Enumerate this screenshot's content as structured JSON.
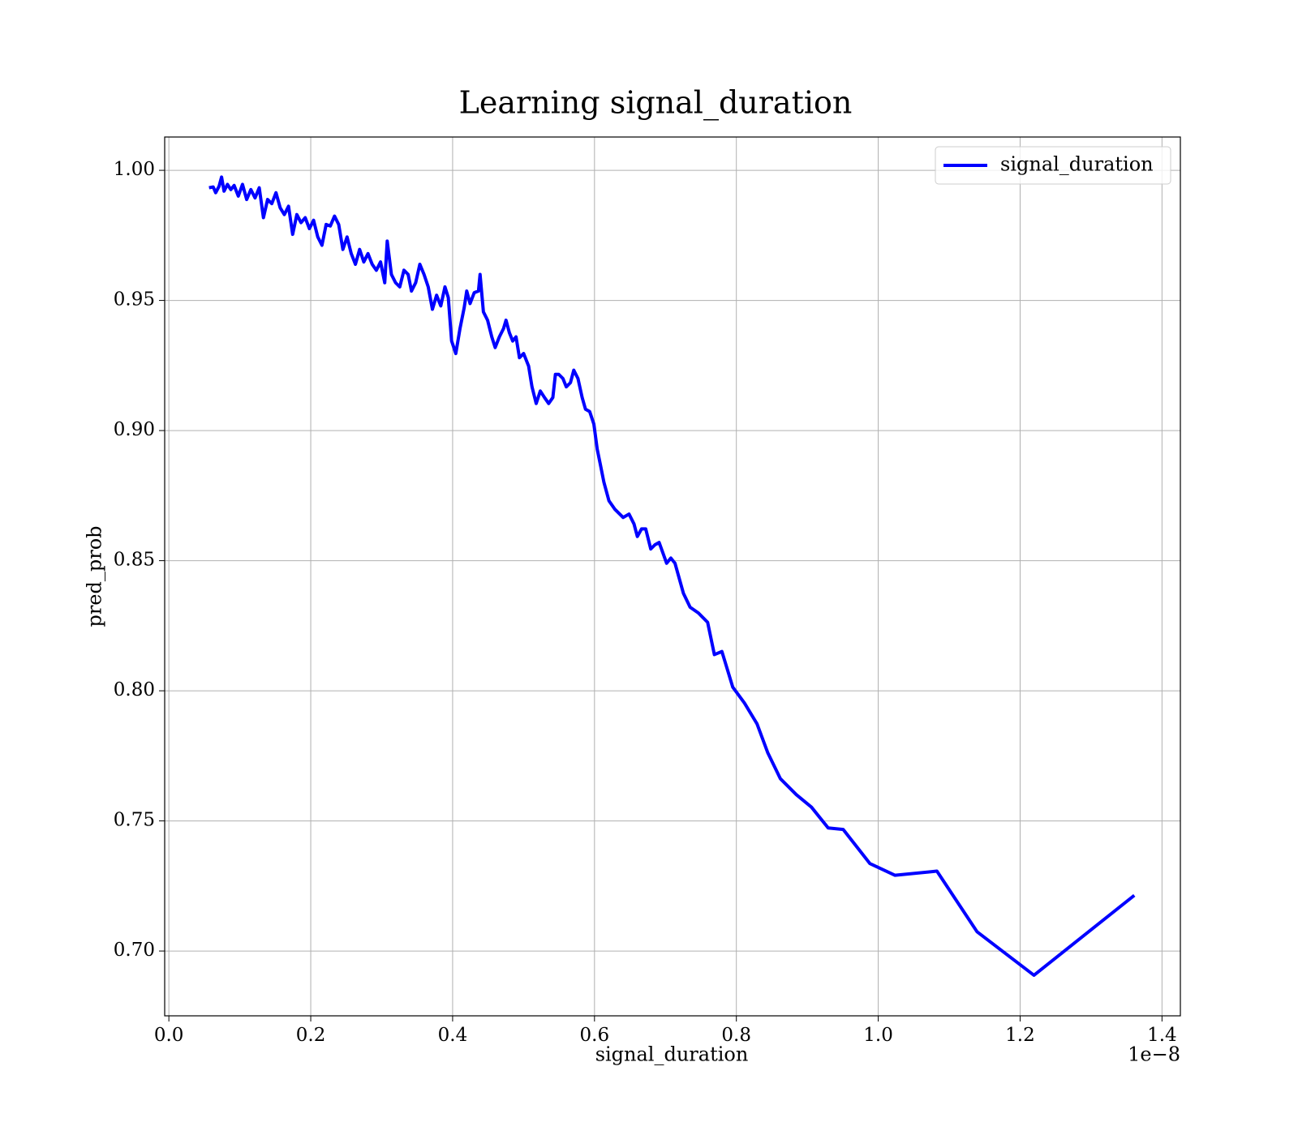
{
  "chart_data": {
    "type": "line",
    "title": "Learning signal_duration",
    "xlabel": "signal_duration",
    "ylabel": "pred_prob",
    "x_offset_label": "1e−8",
    "xlim": [
      -0.0059,
      1.4259
    ],
    "ylim": [
      0.6751,
      1.0128
    ],
    "xticks": [
      {
        "value": 0,
        "label": "0.0"
      },
      0.2,
      0.4,
      0.6,
      0.8,
      {
        "value": 1,
        "label": "1.0"
      },
      1.2,
      1.4
    ],
    "yticks": [
      {
        "value": 0.7,
        "label": "0.70"
      },
      0.75,
      {
        "value": 0.8,
        "label": "0.80"
      },
      0.85,
      {
        "value": 0.9,
        "label": "0.90"
      },
      0.95,
      {
        "value": 1,
        "label": "1.00"
      }
    ],
    "grid": true,
    "legend": "upper right",
    "x": [
      0.0566,
      0.0625,
      0.066,
      0.0708,
      0.0743,
      0.0778,
      0.0826,
      0.0873,
      0.092,
      0.0979,
      0.1038,
      0.1097,
      0.1156,
      0.1215,
      0.1274,
      0.1333,
      0.1392,
      0.1451,
      0.151,
      0.1569,
      0.1628,
      0.1687,
      0.1745,
      0.1804,
      0.1863,
      0.1922,
      0.1981,
      0.204,
      0.2099,
      0.2158,
      0.2217,
      0.2276,
      0.2335,
      0.2394,
      0.2453,
      0.2512,
      0.2571,
      0.263,
      0.2689,
      0.2748,
      0.2807,
      0.2866,
      0.2925,
      0.2984,
      0.3043,
      0.3078,
      0.3137,
      0.3196,
      0.3255,
      0.3314,
      0.3373,
      0.342,
      0.3479,
      0.3538,
      0.3597,
      0.3656,
      0.3715,
      0.3774,
      0.3833,
      0.3892,
      0.3939,
      0.3986,
      0.4045,
      0.4104,
      0.4163,
      0.4199,
      0.4246,
      0.4305,
      0.4364,
      0.4387,
      0.4434,
      0.4493,
      0.4552,
      0.46,
      0.4659,
      0.4718,
      0.4753,
      0.48,
      0.4847,
      0.4894,
      0.4942,
      0.5001,
      0.5071,
      0.5119,
      0.5178,
      0.5236,
      0.5295,
      0.5354,
      0.5413,
      0.5449,
      0.5496,
      0.5555,
      0.5602,
      0.5661,
      0.5708,
      0.5767,
      0.5826,
      0.5873,
      0.5932,
      0.5991,
      0.6038,
      0.6086,
      0.6133,
      0.6204,
      0.6286,
      0.6404,
      0.6487,
      0.6557,
      0.6604,
      0.6663,
      0.6722,
      0.6793,
      0.6852,
      0.6911,
      0.7017,
      0.7076,
      0.7135,
      0.7253,
      0.7348,
      0.7465,
      0.7595,
      0.769,
      0.7796,
      0.7949,
      0.8114,
      0.8291,
      0.8444,
      0.8621,
      0.8845,
      0.9058,
      0.9294,
      0.9506,
      0.9883,
      1.0237,
      1.0827,
      1.1393,
      1.2195,
      1.361
    ],
    "series": [
      {
        "name": "signal_duration",
        "color": "#0000ff",
        "values": [
          0.9933,
          0.9936,
          0.9914,
          0.9939,
          0.9974,
          0.992,
          0.9946,
          0.9926,
          0.9942,
          0.9901,
          0.9946,
          0.9888,
          0.9926,
          0.9894,
          0.9933,
          0.9818,
          0.9888,
          0.9872,
          0.9914,
          0.9856,
          0.983,
          0.9862,
          0.9754,
          0.983,
          0.9799,
          0.9818,
          0.9776,
          0.9808,
          0.9744,
          0.9712,
          0.9792,
          0.9786,
          0.9824,
          0.9792,
          0.9696,
          0.9744,
          0.968,
          0.9639,
          0.9696,
          0.9648,
          0.968,
          0.9639,
          0.9616,
          0.9648,
          0.9568,
          0.9728,
          0.96,
          0.9568,
          0.9552,
          0.9616,
          0.96,
          0.9536,
          0.9568,
          0.9639,
          0.96,
          0.9552,
          0.9466,
          0.952,
          0.9479,
          0.9552,
          0.9511,
          0.9344,
          0.9296,
          0.9392,
          0.9472,
          0.9536,
          0.9488,
          0.953,
          0.9536,
          0.96,
          0.9456,
          0.9424,
          0.936,
          0.9319,
          0.936,
          0.9392,
          0.9424,
          0.9376,
          0.9344,
          0.936,
          0.928,
          0.9296,
          0.9248,
          0.9168,
          0.9104,
          0.9152,
          0.9127,
          0.9104,
          0.9127,
          0.9216,
          0.9216,
          0.92,
          0.9168,
          0.9184,
          0.9232,
          0.92,
          0.9127,
          0.9082,
          0.9073,
          0.9025,
          0.8929,
          0.8865,
          0.8801,
          0.873,
          0.8698,
          0.8666,
          0.8679,
          0.8641,
          0.8593,
          0.8622,
          0.8622,
          0.8545,
          0.8561,
          0.857,
          0.849,
          0.851,
          0.849,
          0.8375,
          0.8321,
          0.8299,
          0.8263,
          0.8139,
          0.8151,
          0.8014,
          0.7953,
          0.7873,
          0.7761,
          0.7662,
          0.7601,
          0.7553,
          0.7473,
          0.7467,
          0.7336,
          0.7291,
          0.7307,
          0.7074,
          0.6907,
          0.7214
        ]
      }
    ]
  }
}
